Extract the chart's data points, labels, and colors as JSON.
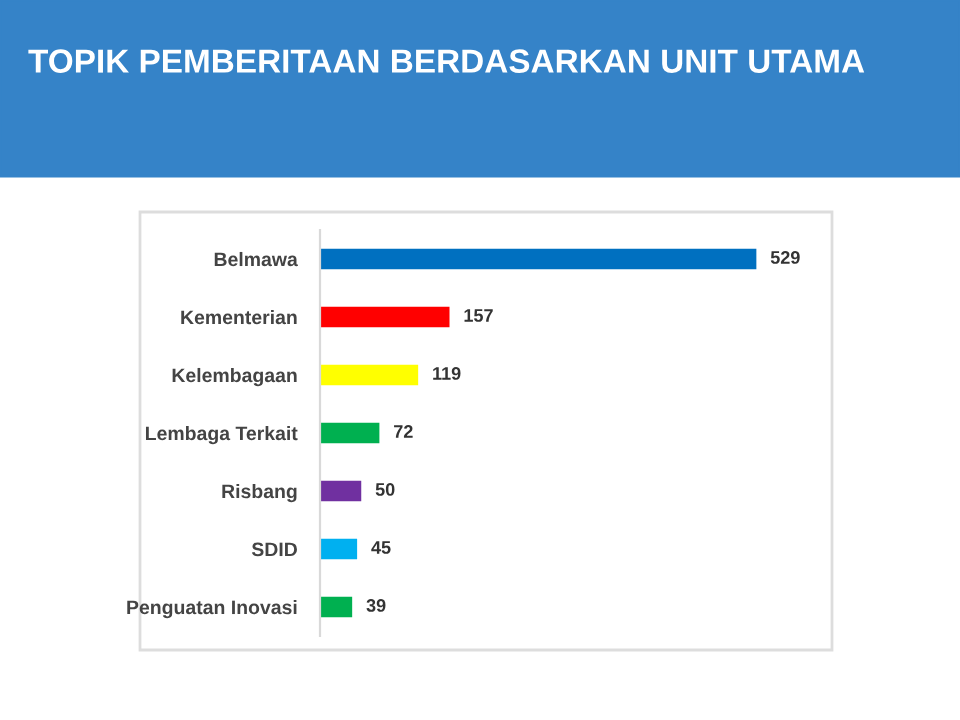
{
  "chart_data": {
    "type": "bar",
    "orientation": "horizontal",
    "title": "TOPIK PEMBERITAAN BERDASARKAN UNIT UTAMA",
    "categories": [
      "Belmawa",
      "Kementerian",
      "Kelembagaan",
      "Lembaga Terkait",
      "Risbang",
      "SDID",
      "Penguatan Inovasi"
    ],
    "values": [
      529,
      157,
      119,
      72,
      50,
      45,
      39
    ],
    "colors": [
      "#0070c0",
      "#ff0000",
      "#ffff00",
      "#00b050",
      "#7030a0",
      "#00b0f0",
      "#00b050"
    ],
    "data_labels": true,
    "grid": false,
    "legend": false
  }
}
